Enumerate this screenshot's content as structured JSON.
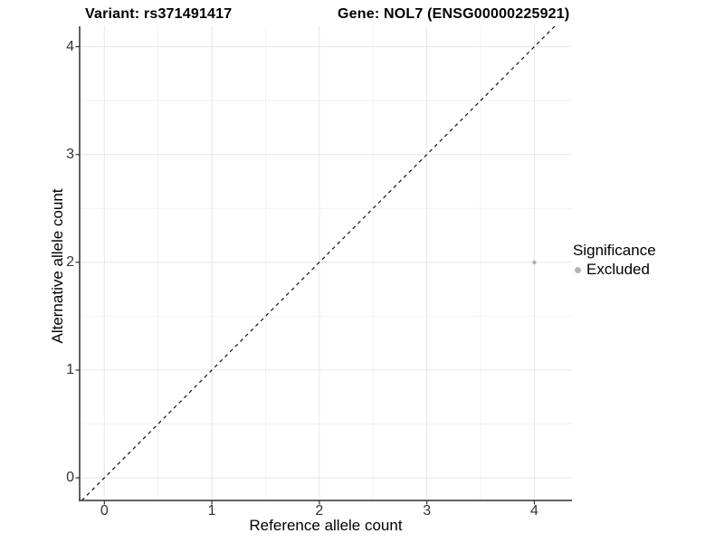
{
  "chart_data": {
    "type": "scatter",
    "title_left": "Variant: rs371491417",
    "title_right": "Gene: NOL7 (ENSG00000225921)",
    "xlabel": "Reference allele count",
    "ylabel": "Alternative allele count",
    "xlim": [
      -0.23,
      4.35
    ],
    "ylim": [
      -0.21,
      4.19
    ],
    "x_ticks": [
      0,
      1,
      2,
      3,
      4
    ],
    "y_ticks": [
      0,
      1,
      2,
      3,
      4
    ],
    "x_minor": [
      0.5,
      1.5,
      2.5,
      3.5
    ],
    "y_minor": [
      0.5,
      1.5,
      2.5,
      3.5
    ],
    "grid": true,
    "points": [
      {
        "x": 4,
        "y": 2,
        "series": "Excluded"
      }
    ],
    "reference_line": {
      "slope": 1,
      "intercept": 0,
      "style": "dashed"
    },
    "legend": {
      "title": "Significance",
      "position": "right",
      "items": [
        {
          "label": "Excluded",
          "color": "#b4b4b4"
        }
      ]
    },
    "colors": {
      "background": "#ffffff",
      "grid_major": "#e6e6e6",
      "grid_minor": "#f2f2f2",
      "axis": "#2f2f2f",
      "tick": "#2f2f2f",
      "tick_label": "#333333",
      "point": "#b0b0b0",
      "reference_line": "#111111"
    }
  }
}
